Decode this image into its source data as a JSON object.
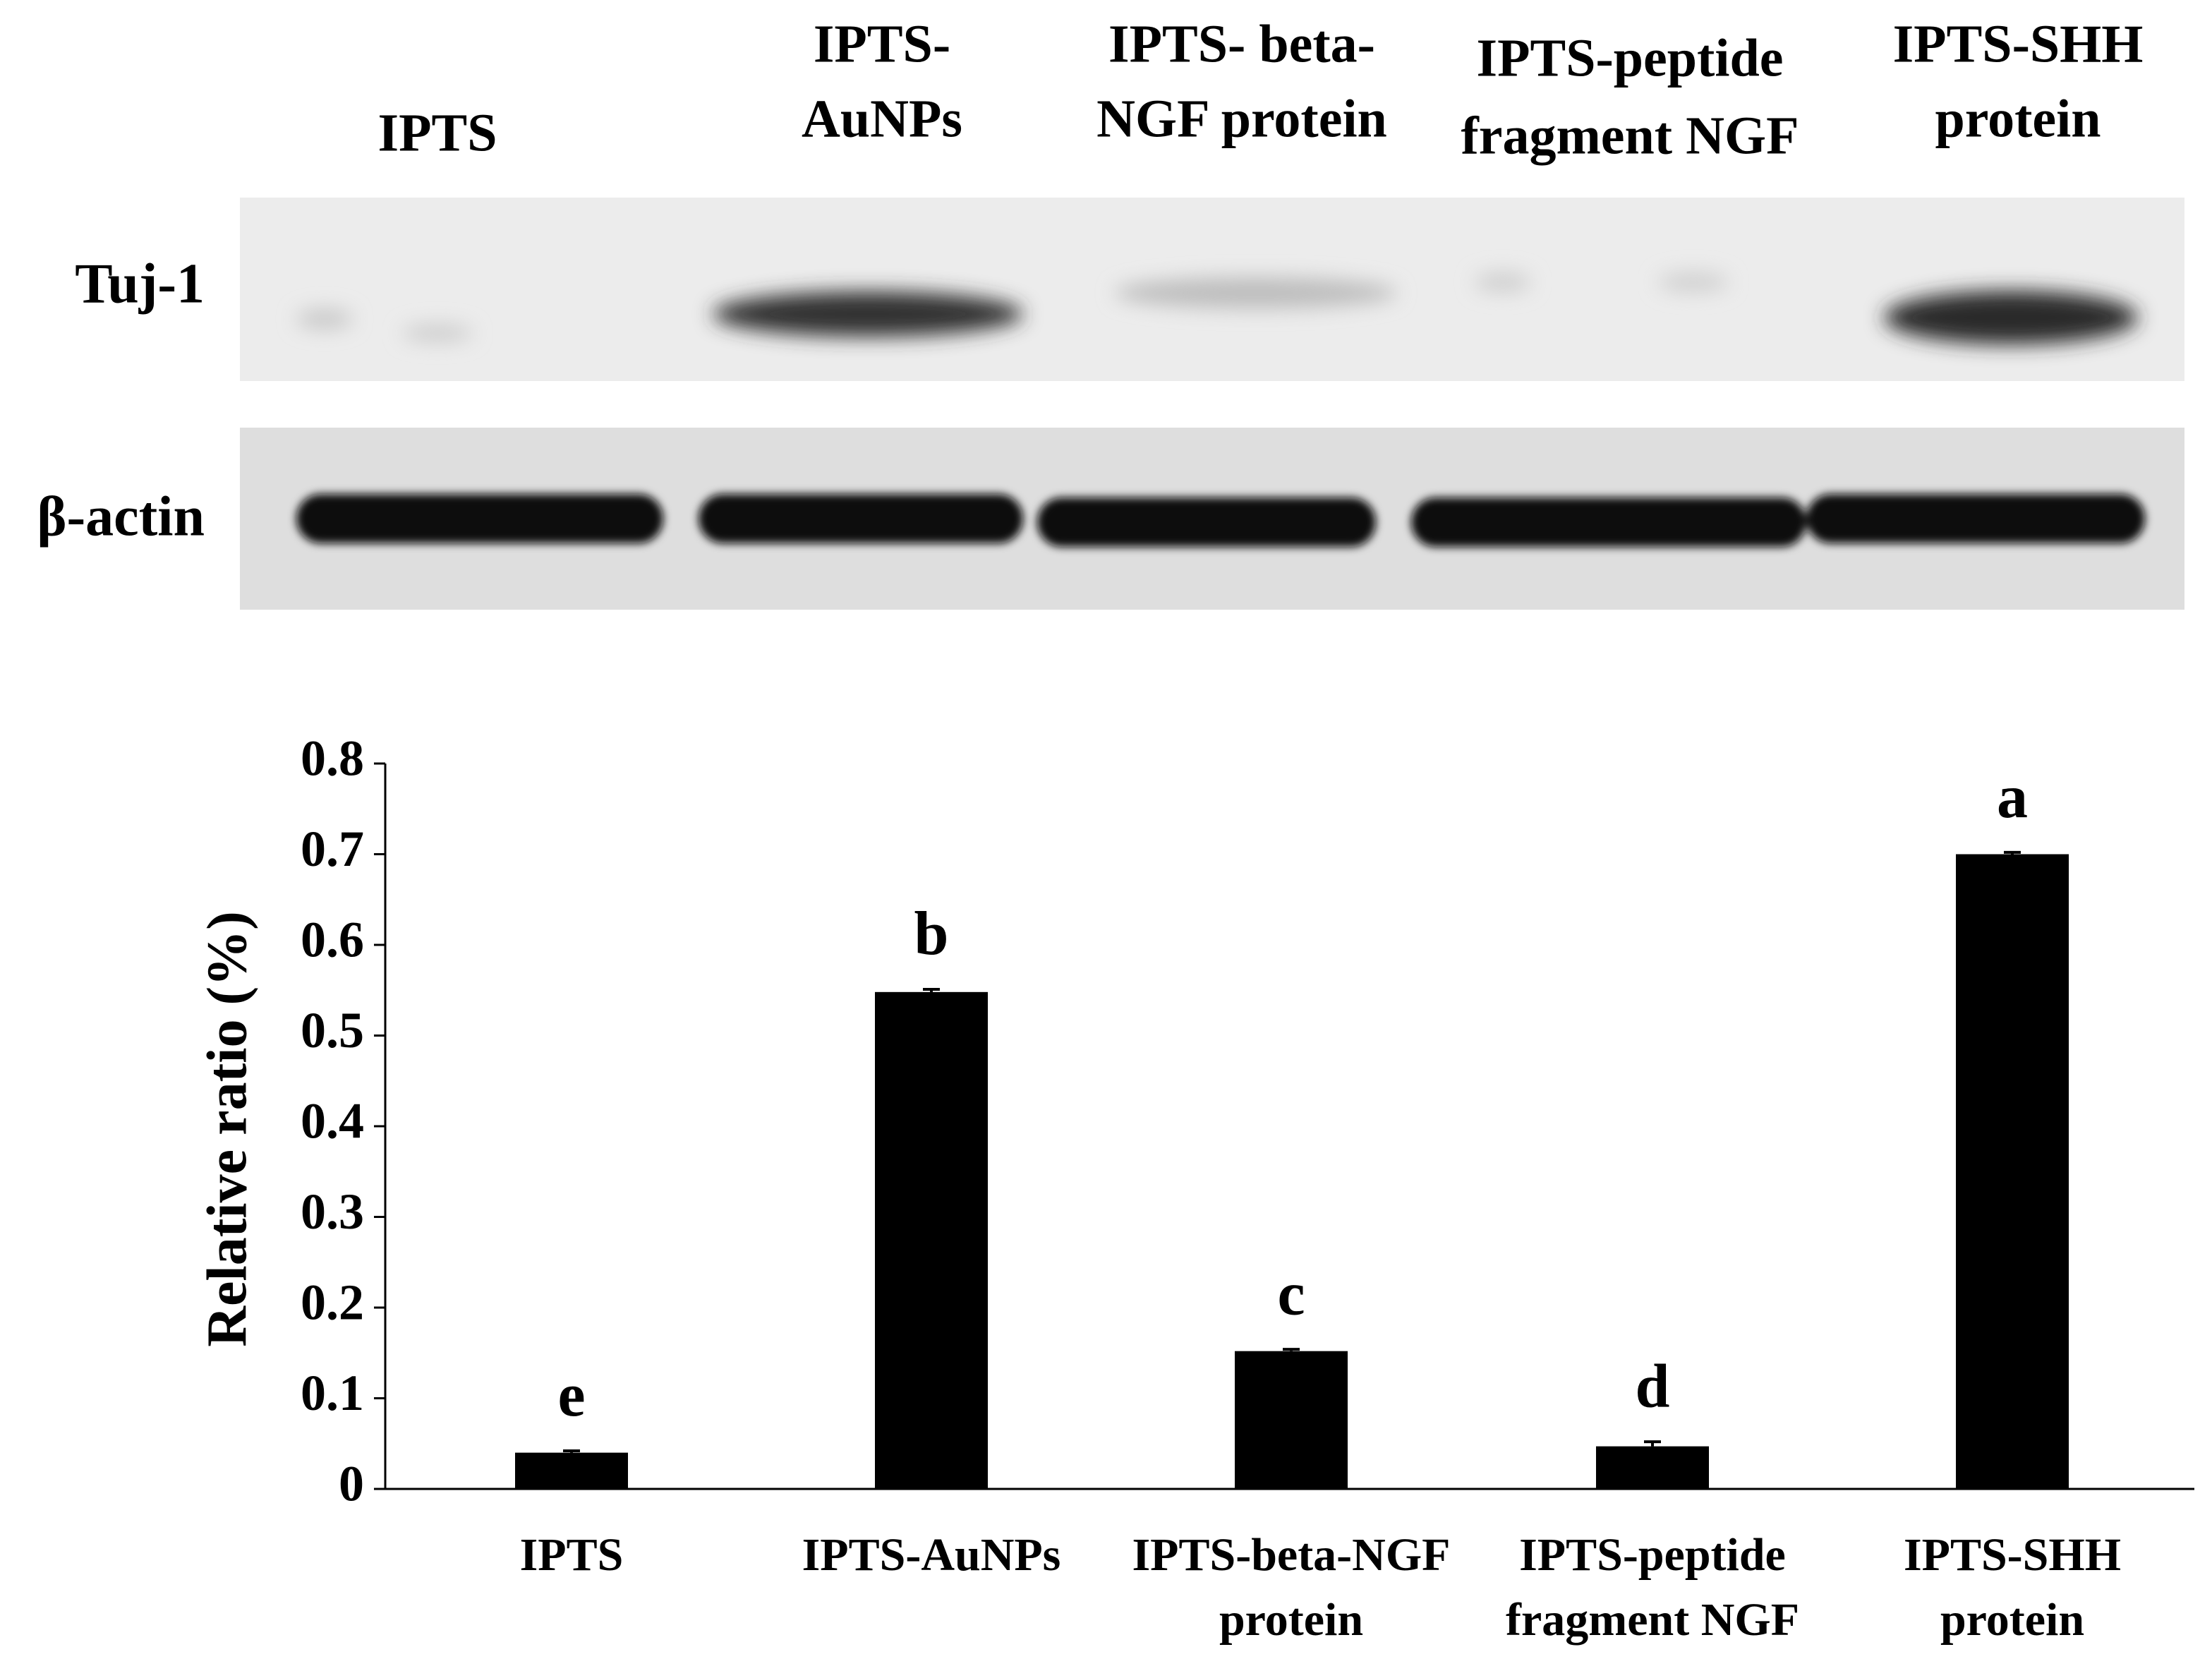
{
  "blot": {
    "lane_labels": [
      [
        "IPTS"
      ],
      [
        "IPTS-",
        "AuNPs"
      ],
      [
        "IPTS- beta-",
        "NGF protein"
      ],
      [
        "IPTS-peptide",
        "fragment NGF"
      ],
      [
        "IPTS-SHH",
        "protein"
      ]
    ],
    "row_labels": [
      "Tuj-1",
      "β-actin"
    ]
  },
  "chart_data": {
    "type": "bar",
    "y_label": "Relative ratio (%)",
    "categories": [
      [
        "IPTS"
      ],
      [
        "IPTS-AuNPs"
      ],
      [
        "IPTS-beta-NGF",
        "protein"
      ],
      [
        "IPTS-peptide",
        "fragment NGF"
      ],
      [
        "IPTS-SHH",
        "protein"
      ]
    ],
    "values": [
      0.04,
      0.548,
      0.152,
      0.047,
      0.7
    ],
    "errors": [
      0.002,
      0.003,
      0.002,
      0.005,
      0.002
    ],
    "letters": [
      "e",
      "b",
      "c",
      "d",
      "a"
    ],
    "color": "#000000",
    "ylim": [
      0,
      0.8
    ],
    "yticks": [
      0,
      0.1,
      0.2,
      0.3,
      0.4,
      0.5,
      0.6,
      0.7,
      0.8
    ]
  }
}
